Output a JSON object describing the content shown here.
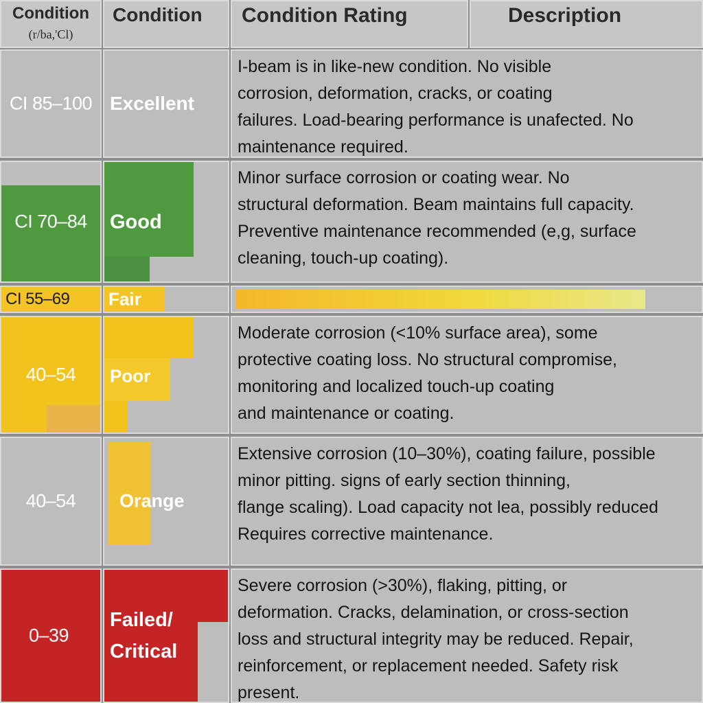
{
  "headers": {
    "index_line1": "Condition",
    "index_line2": "(r/ba,'Cl)",
    "condition": "Condition",
    "rating": "Condition Rating",
    "description": "Description"
  },
  "rows": [
    {
      "index": "CI 85–100",
      "rating": "Excellent",
      "description": "I-beam is in like-new condition. No visible\ncorrosion, deformation, cracks, or coating\nfailures. Load-bearing performance is unafected. No\nmaintenance required."
    },
    {
      "index": "CI 70–84",
      "rating": "Good",
      "color": "#4f9a3f",
      "description": "Minor surface corrosion or coating wear. No\nstructural deformation. Beam maintains full capacity.\nPreventive maintenance recommended (e,g, surface\ncleaning, touch-up coating)."
    },
    {
      "index": "CI 55–69",
      "rating": "Fair",
      "color": "#f4c326"
    },
    {
      "index": "40–54",
      "rating": "Poor",
      "color": "#f2c31c",
      "description": "Moderate corrosion (<10% surface area), some\nprotective coating loss. No structural compromise,\nmonitoring and localized touch-up coating\nand maintenance or coating."
    },
    {
      "index": "40–54",
      "rating": "Orange",
      "color": "#f0c233",
      "description": "Extensive corrosion (10–30%), coating failure, possible\nminor pitting. signs of early section thinning,\nflange scaling). Load capacity not lea, possibly reduced\nRequires corrective maintenance."
    },
    {
      "index": "0–39",
      "rating": "Failed/\nCritical",
      "color": "#c42424",
      "description": "Severe corrosion (>30%), flaking, pitting, or\ndeformation. Cracks, delamination, or cross-section\nloss and structural integrity may be reduced. Repair,\nreinforcement, or replacement needed. Safety risk\npresent."
    }
  ]
}
